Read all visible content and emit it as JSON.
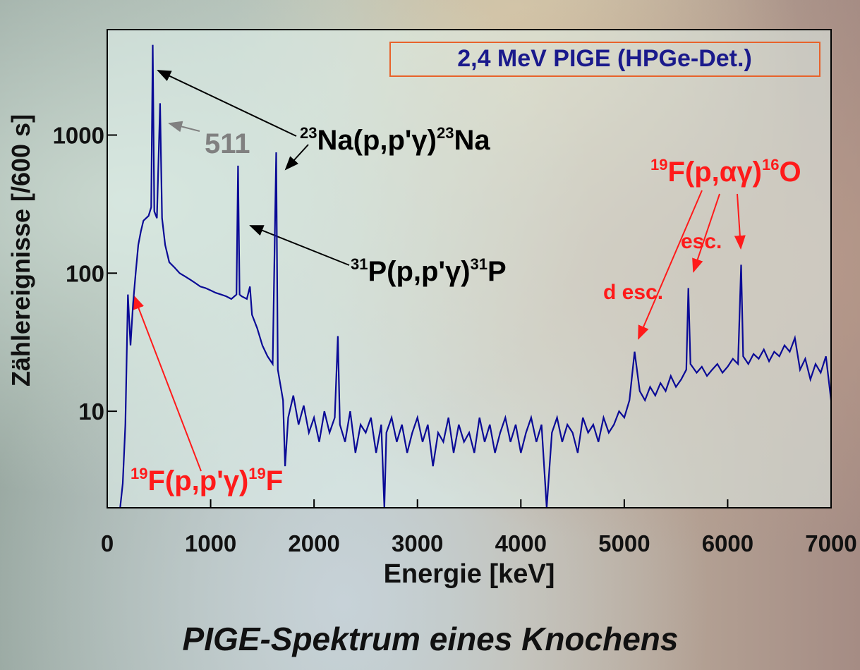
{
  "chart_data": {
    "type": "line",
    "title": "PIGE-Spektrum eines Knochens",
    "x_label": "Energie [keV]",
    "y_label": "Zählereignisse [/600 s]",
    "log_y": true,
    "color": "#0a0a96",
    "xlim": [
      0,
      7000
    ],
    "xticks": [
      0,
      1000,
      2000,
      3000,
      4000,
      5000,
      6000,
      7000
    ],
    "ylim": [
      2,
      5800
    ],
    "yticks": [
      10,
      100,
      1000
    ],
    "x": [
      125,
      150,
      175,
      200,
      225,
      250,
      275,
      300,
      325,
      350,
      375,
      400,
      425,
      440,
      455,
      480,
      511,
      530,
      560,
      600,
      650,
      700,
      750,
      800,
      850,
      900,
      950,
      1000,
      1050,
      1100,
      1150,
      1200,
      1250,
      1265,
      1280,
      1300,
      1350,
      1380,
      1400,
      1450,
      1500,
      1550,
      1600,
      1634,
      1650,
      1700,
      1720,
      1750,
      1800,
      1850,
      1900,
      1950,
      2000,
      2050,
      2100,
      2150,
      2200,
      2230,
      2250,
      2300,
      2350,
      2400,
      2450,
      2500,
      2550,
      2600,
      2650,
      2680,
      2700,
      2750,
      2800,
      2850,
      2900,
      2950,
      3000,
      3050,
      3100,
      3150,
      3200,
      3250,
      3300,
      3350,
      3400,
      3450,
      3500,
      3550,
      3600,
      3650,
      3700,
      3750,
      3800,
      3850,
      3900,
      3950,
      4000,
      4050,
      4100,
      4150,
      4200,
      4250,
      4300,
      4350,
      4400,
      4450,
      4500,
      4550,
      4600,
      4650,
      4700,
      4750,
      4800,
      4850,
      4900,
      4950,
      5000,
      5050,
      5100,
      5150,
      5200,
      5250,
      5300,
      5350,
      5400,
      5450,
      5500,
      5550,
      5600,
      5620,
      5640,
      5700,
      5750,
      5800,
      5850,
      5900,
      5950,
      6000,
      6050,
      6100,
      6130,
      6150,
      6200,
      6250,
      6300,
      6350,
      6400,
      6450,
      6500,
      6550,
      6600,
      6650,
      6700,
      6750,
      6800,
      6850,
      6900,
      6950,
      7000
    ],
    "values": [
      2,
      3,
      8,
      70,
      30,
      60,
      100,
      160,
      200,
      240,
      250,
      260,
      300,
      4500,
      280,
      250,
      1700,
      250,
      160,
      120,
      110,
      100,
      95,
      90,
      85,
      80,
      78,
      75,
      72,
      70,
      68,
      65,
      70,
      600,
      70,
      68,
      65,
      80,
      50,
      40,
      30,
      25,
      22,
      750,
      20,
      12,
      4,
      9,
      13,
      8,
      11,
      7,
      9,
      6,
      10,
      7,
      9,
      35,
      8,
      6,
      10,
      5,
      8,
      7,
      9,
      5,
      8,
      2,
      7,
      9,
      6,
      8,
      5,
      7,
      9,
      6,
      8,
      4,
      7,
      6,
      9,
      5,
      8,
      6,
      7,
      5,
      9,
      6,
      8,
      5,
      7,
      9,
      6,
      8,
      5,
      7,
      9,
      6,
      8,
      2,
      7,
      9,
      6,
      8,
      7,
      5,
      9,
      7,
      8,
      6,
      9,
      7,
      8,
      10,
      9,
      12,
      27,
      14,
      12,
      15,
      13,
      16,
      14,
      18,
      15,
      17,
      20,
      78,
      22,
      19,
      21,
      18,
      20,
      22,
      19,
      21,
      24,
      22,
      115,
      25,
      22,
      26,
      24,
      28,
      23,
      27,
      25,
      30,
      27,
      34,
      20,
      24,
      17,
      22,
      19,
      25,
      12
    ],
    "annotations": [
      {
        "parts": [
          {
            "text": "2,4 MeV PIGE (HPGe-Det.)"
          }
        ],
        "color": "#1a1a8c"
      },
      {
        "parts": [
          {
            "text": "511"
          }
        ],
        "color": "#808080"
      },
      {
        "parts": [
          {
            "sup": "23"
          },
          {
            "text": "Na(p,p'γ)"
          },
          {
            "sup": "23"
          },
          {
            "text": "Na"
          }
        ],
        "color": "#000000"
      },
      {
        "parts": [
          {
            "sup": "31"
          },
          {
            "text": "P(p,p'γ)"
          },
          {
            "sup": "31"
          },
          {
            "text": "P"
          }
        ],
        "color": "#000000"
      },
      {
        "parts": [
          {
            "sup": "19"
          },
          {
            "text": "F(p,αγ)"
          },
          {
            "sup": "16"
          },
          {
            "text": "O"
          }
        ],
        "color": "#ff1a1a"
      },
      {
        "parts": [
          {
            "text": "esc."
          }
        ],
        "color": "#ff1a1a"
      },
      {
        "parts": [
          {
            "text": "d esc."
          }
        ],
        "color": "#ff1a1a"
      },
      {
        "parts": [
          {
            "sup": "19"
          },
          {
            "text": "F(p,p'γ)"
          },
          {
            "sup": "19"
          },
          {
            "text": "F"
          }
        ],
        "color": "#ff1a1a"
      }
    ]
  }
}
